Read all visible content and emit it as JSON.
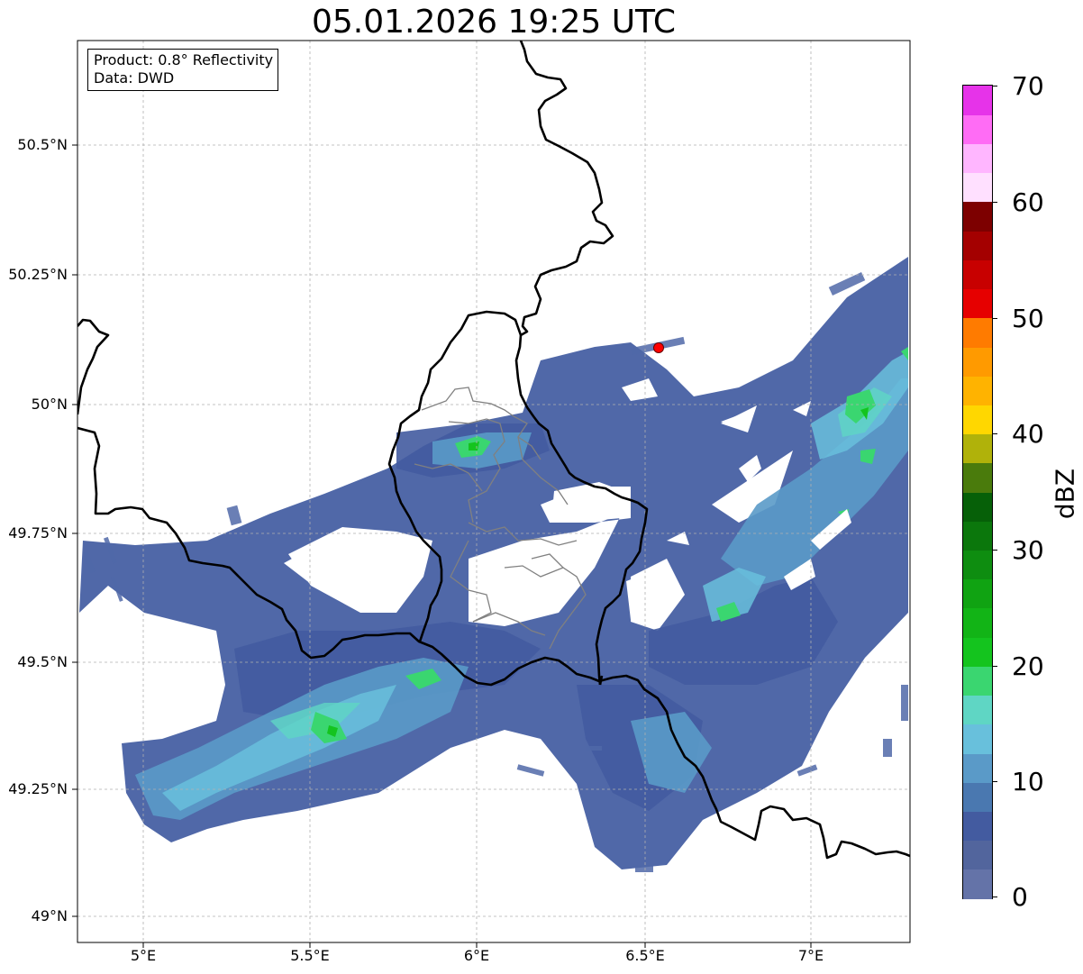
{
  "title": "05.01.2026 19:25 UTC",
  "info": {
    "product": "Product: 0.8° Reflectivity",
    "data": "Data: DWD"
  },
  "y_ticks": [
    "50.5°N",
    "50.25°N",
    "50°N",
    "49.75°N",
    "49.5°N",
    "49.25°N",
    "49°N"
  ],
  "x_ticks": [
    "5°E",
    "5.5°E",
    "6°E",
    "6.5°E",
    "7°E"
  ],
  "colorbar": {
    "label": "dBZ",
    "tick_labels": [
      "70",
      "60",
      "50",
      "40",
      "30",
      "20",
      "10",
      "0"
    ],
    "range": [
      0,
      70
    ],
    "colors": [
      "#6473a8",
      "#52659d",
      "#435ba0",
      "#4a78b0",
      "#5a9ac8",
      "#68c0dc",
      "#5fd6c4",
      "#3ad670",
      "#14c41e",
      "#12b416",
      "#10a312",
      "#0e8d10",
      "#0b770c",
      "#066008",
      "#4a7b0c",
      "#b0b20a",
      "#ffd700",
      "#ffb300",
      "#ff9a00",
      "#ff7b00",
      "#e60000",
      "#c80000",
      "#a40000",
      "#7d0000",
      "#ffe0ff",
      "#ffb6ff",
      "#ff6cf5",
      "#e633e9"
    ]
  },
  "map": {
    "lon_range": [
      4.8,
      7.3
    ],
    "lat_range": [
      48.95,
      50.7
    ],
    "gridlines": true,
    "radar_site": {
      "lon": 6.55,
      "lat": 50.11,
      "color": "#ff0000"
    }
  }
}
